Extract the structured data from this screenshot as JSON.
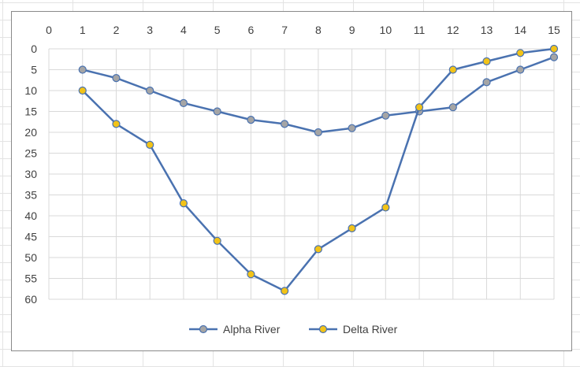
{
  "chart_data": {
    "type": "line",
    "title": "",
    "xlabel": "",
    "ylabel": "",
    "x": [
      0,
      1,
      2,
      3,
      4,
      5,
      6,
      7,
      8,
      9,
      10,
      11,
      12,
      13,
      14,
      15
    ],
    "xlim": [
      0,
      15
    ],
    "ylim": [
      0,
      60
    ],
    "y_reversed": true,
    "x_axis_position": "top",
    "yticks": [
      0,
      5,
      10,
      15,
      20,
      25,
      30,
      35,
      40,
      45,
      50,
      55,
      60
    ],
    "xticks": [
      0,
      1,
      2,
      3,
      4,
      5,
      6,
      7,
      8,
      9,
      10,
      11,
      12,
      13,
      14,
      15
    ],
    "grid": true,
    "legend_position": "bottom",
    "series": [
      {
        "name": "Alpha River",
        "line_color": "#4a72b0",
        "marker_fill": "#a5a5a5",
        "x": [
          1,
          2,
          3,
          4,
          5,
          6,
          7,
          8,
          9,
          10,
          11,
          12,
          13,
          14,
          15
        ],
        "values": [
          5,
          7,
          10,
          13,
          15,
          17,
          18,
          20,
          19,
          16,
          15,
          14,
          8,
          5,
          2
        ]
      },
      {
        "name": "Delta River",
        "line_color": "#4a72b0",
        "marker_fill": "#f2c318",
        "x": [
          1,
          2,
          3,
          4,
          5,
          6,
          7,
          8,
          9,
          10,
          11,
          12,
          13,
          14,
          15
        ],
        "values": [
          10,
          18,
          23,
          37,
          46,
          54,
          58,
          48,
          43,
          38,
          14,
          5,
          3,
          1,
          0
        ]
      }
    ]
  }
}
